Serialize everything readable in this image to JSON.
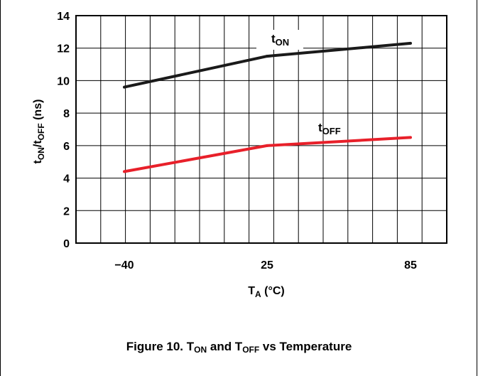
{
  "chart_data": {
    "type": "line",
    "x": [
      "-40",
      "25",
      "85"
    ],
    "x_tick_labels": [
      "−40",
      "25",
      "85"
    ],
    "y_ticks": [
      0,
      2,
      4,
      6,
      8,
      10,
      12,
      14
    ],
    "ylim": [
      0,
      14
    ],
    "grid": true,
    "xlabel": {
      "main": "T",
      "sub": "A",
      "suffix": " (°C)"
    },
    "ylabel": {
      "p1": "t",
      "s1": "ON",
      "p2": "/t",
      "s2": "OFF",
      "p3": " (ns)"
    },
    "series": [
      {
        "name": {
          "main": "t",
          "sub": "ON"
        },
        "color": "#1a1a1a",
        "values": [
          9.6,
          11.5,
          12.3
        ]
      },
      {
        "name": {
          "main": "t",
          "sub": "OFF"
        },
        "color": "#e8202a",
        "values": [
          4.4,
          6.0,
          6.5
        ]
      }
    ],
    "caption": {
      "p1": "Figure 10. T",
      "s1": "ON",
      "p2": " and T",
      "s2": "OFF",
      "p3": " vs Temperature"
    }
  }
}
